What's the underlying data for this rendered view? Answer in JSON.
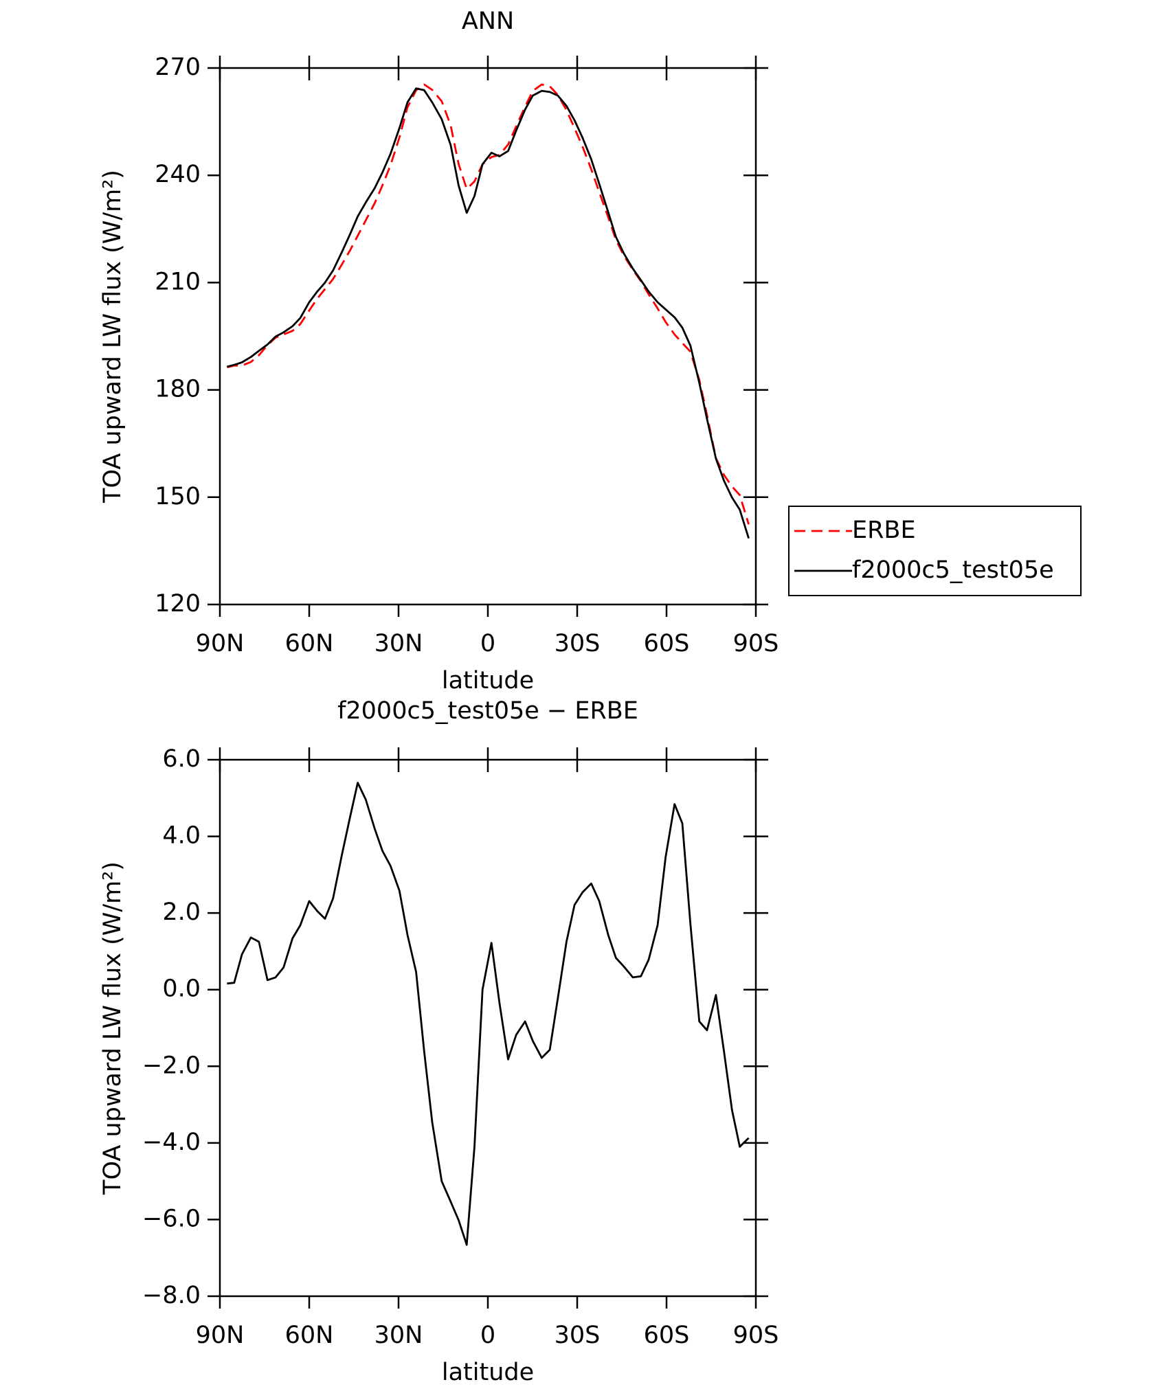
{
  "chart_data": [
    {
      "type": "line",
      "title": "ANN",
      "xlabel": "latitude",
      "ylabel": "TOA upward LW flux (W/m²)",
      "x": [
        87.6,
        85.2,
        82.6,
        79.6,
        76.9,
        74.0,
        71.3,
        68.6,
        65.6,
        63.0,
        60.0,
        57.3,
        54.7,
        52.0,
        49.0,
        46.3,
        43.7,
        41.0,
        38.0,
        35.4,
        32.7,
        29.7,
        27.0,
        24.1,
        21.4,
        18.7,
        15.5,
        12.5,
        9.8,
        7.1,
        4.5,
        1.8,
        -1.2,
        -3.9,
        -6.8,
        -9.5,
        -12.5,
        -15.1,
        -18.1,
        -20.8,
        -23.5,
        -26.4,
        -29.1,
        -31.8,
        -34.7,
        -37.4,
        -40.4,
        -43.0,
        -45.7,
        -48.7,
        -51.4,
        -54.0,
        -57.0,
        -59.7,
        -62.7,
        -65.3,
        -68.0,
        -71.0,
        -73.6,
        -76.6,
        -79.3,
        -82.0,
        -84.6,
        -87.6
      ],
      "series": [
        {
          "name": "ERBE",
          "color": "#ff0000",
          "dashed": true,
          "values": [
            186.3,
            186.8,
            186.8,
            187.8,
            189.7,
            192.5,
            194.6,
            195.5,
            196.5,
            198.4,
            202.2,
            205.5,
            208.2,
            211.0,
            215.1,
            219.0,
            223.1,
            227.4,
            232.2,
            237.2,
            242.8,
            250.6,
            259.0,
            263.8,
            265.4,
            263.9,
            260.7,
            254.0,
            243.1,
            236.2,
            238.3,
            243.1,
            245.1,
            245.7,
            248.6,
            253.7,
            259.2,
            263.6,
            265.4,
            264.9,
            262.5,
            258.2,
            253.2,
            248.0,
            241.7,
            235.3,
            228.3,
            222.0,
            217.5,
            213.6,
            210.4,
            206.7,
            202.8,
            199.0,
            195.5,
            193.1,
            190.7,
            182.8,
            173.0,
            160.9,
            156.2,
            153.0,
            150.6,
            142.4
          ]
        },
        {
          "name": "f2000c5_test05e",
          "color": "#000000",
          "dashed": false,
          "values": [
            186.5,
            187.0,
            187.7,
            189.2,
            190.9,
            192.7,
            194.9,
            196.1,
            197.8,
            200.1,
            204.5,
            207.5,
            210.0,
            213.4,
            218.6,
            223.5,
            228.5,
            232.4,
            236.4,
            240.8,
            246.0,
            253.2,
            260.4,
            264.3,
            263.8,
            260.4,
            255.7,
            248.5,
            237.1,
            229.5,
            234.2,
            243.1,
            246.3,
            245.3,
            246.8,
            252.5,
            258.4,
            262.3,
            263.6,
            263.3,
            262.3,
            259.4,
            255.4,
            250.5,
            244.5,
            237.6,
            229.7,
            222.8,
            218.1,
            213.9,
            210.7,
            207.5,
            204.5,
            202.5,
            200.3,
            197.4,
            192.4,
            182.0,
            171.9,
            160.8,
            154.6,
            149.9,
            146.5,
            138.5
          ]
        }
      ],
      "xlim": [
        90,
        -90
      ],
      "xticks": [
        {
          "value": 90,
          "label": "90N"
        },
        {
          "value": 60,
          "label": "60N"
        },
        {
          "value": 30,
          "label": "30N"
        },
        0,
        {
          "value": -30,
          "label": "30S"
        },
        {
          "value": -60,
          "label": "60S"
        },
        {
          "value": -90,
          "label": "90S"
        }
      ],
      "ylim": [
        120,
        270
      ],
      "yticks": [
        120,
        150,
        180,
        210,
        240,
        270
      ],
      "legend": "outside-right"
    },
    {
      "type": "line",
      "title": "f2000c5_test05e − ERBE",
      "xlabel": "latitude",
      "ylabel": "TOA upward LW flux (W/m²)",
      "x": [
        87.6,
        85.2,
        82.6,
        79.6,
        76.9,
        74.0,
        71.3,
        68.6,
        65.6,
        63.0,
        60.0,
        57.3,
        54.7,
        52.0,
        49.0,
        46.3,
        43.7,
        41.0,
        38.0,
        35.4,
        32.7,
        29.7,
        27.0,
        24.1,
        21.4,
        18.7,
        15.5,
        12.5,
        9.8,
        7.1,
        4.5,
        1.8,
        -1.2,
        -3.9,
        -6.8,
        -9.5,
        -12.5,
        -15.1,
        -18.1,
        -20.8,
        -23.5,
        -26.4,
        -29.1,
        -31.8,
        -34.7,
        -37.4,
        -40.4,
        -43.0,
        -45.7,
        -48.7,
        -51.4,
        -54.0,
        -57.0,
        -59.7,
        -62.7,
        -65.3,
        -68.0,
        -71.0,
        -73.6,
        -76.6,
        -79.3,
        -82.0,
        -84.6,
        -87.6
      ],
      "series": [
        {
          "color": "#000000",
          "dashed": false,
          "values": [
            0.16,
            0.18,
            0.92,
            1.36,
            1.25,
            0.25,
            0.32,
            0.58,
            1.34,
            1.68,
            2.31,
            2.05,
            1.85,
            2.38,
            3.53,
            4.5,
            5.4,
            4.96,
            4.2,
            3.62,
            3.23,
            2.58,
            1.43,
            0.46,
            -1.61,
            -3.46,
            -5.0,
            -5.53,
            -6.02,
            -6.66,
            -4.1,
            0.0,
            1.22,
            -0.35,
            -1.82,
            -1.18,
            -0.83,
            -1.34,
            -1.78,
            -1.57,
            -0.23,
            1.25,
            2.21,
            2.54,
            2.77,
            2.31,
            1.43,
            0.83,
            0.6,
            0.32,
            0.35,
            0.78,
            1.68,
            3.46,
            4.84,
            4.34,
            1.73,
            -0.83,
            -1.06,
            -0.14,
            -1.61,
            -3.14,
            -4.1,
            -3.87
          ]
        }
      ],
      "xlim": [
        90,
        -90
      ],
      "xticks": [
        {
          "value": 90,
          "label": "90N"
        },
        {
          "value": 60,
          "label": "60N"
        },
        {
          "value": 30,
          "label": "30N"
        },
        0,
        {
          "value": -30,
          "label": "30S"
        },
        {
          "value": -60,
          "label": "60S"
        },
        {
          "value": -90,
          "label": "90S"
        }
      ],
      "ylim": [
        -8,
        6
      ],
      "yticks": [
        {
          "value": -8,
          "label": "−8.0"
        },
        {
          "value": -6,
          "label": "−6.0"
        },
        {
          "value": -4,
          "label": "−4.0"
        },
        {
          "value": -2,
          "label": "−2.0"
        },
        {
          "value": 0,
          "label": "0.0"
        },
        {
          "value": 2,
          "label": "2.0"
        },
        {
          "value": 4,
          "label": "4.0"
        },
        {
          "value": 6,
          "label": "6.0"
        }
      ]
    }
  ]
}
